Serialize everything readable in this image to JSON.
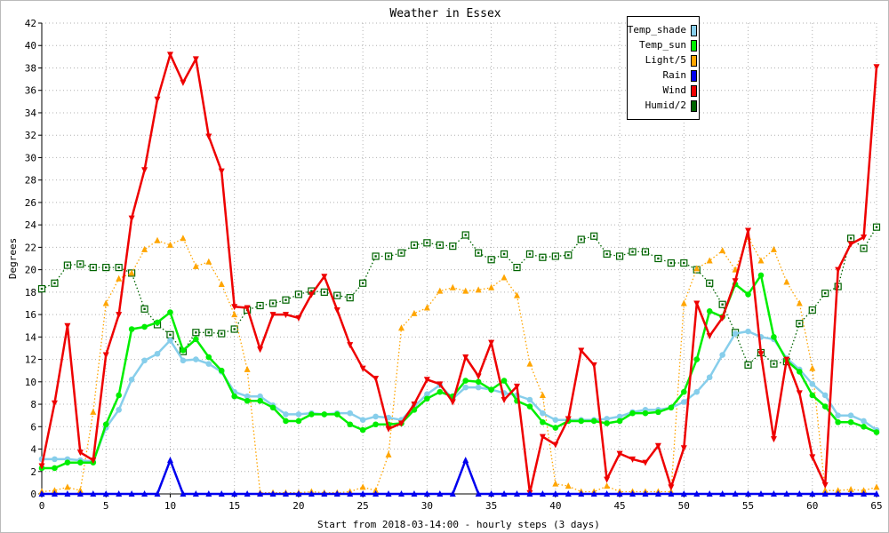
{
  "chart_data": {
    "type": "line",
    "title": "Weather in Essex",
    "xlabel": "Start from 2018-03-14:00 - hourly steps (3 days)",
    "ylabel": "Degrees",
    "xlim": [
      0,
      65
    ],
    "ylim": [
      0,
      42
    ],
    "xticks": [
      0,
      5,
      10,
      15,
      20,
      25,
      30,
      35,
      40,
      45,
      50,
      55,
      60,
      65
    ],
    "yticks": [
      0,
      2,
      4,
      6,
      8,
      10,
      12,
      14,
      16,
      18,
      20,
      22,
      24,
      26,
      28,
      30,
      32,
      34,
      36,
      38,
      40,
      42
    ],
    "grid": true,
    "legend_position": "top-right",
    "series": [
      {
        "name": "Temp_shade",
        "color": "#87ceeb",
        "marker": "circle",
        "style": "solid",
        "values": [
          3.1,
          3.1,
          3.1,
          3.0,
          2.9,
          5.9,
          7.5,
          10.2,
          11.9,
          12.5,
          13.7,
          11.9,
          12.0,
          11.6,
          10.9,
          9.1,
          8.7,
          8.7,
          7.9,
          7.1,
          7.1,
          7.2,
          7.1,
          7.2,
          7.2,
          6.6,
          6.9,
          6.8,
          6.6,
          7.8,
          8.9,
          9.7,
          8.5,
          9.5,
          9.5,
          9.3,
          9.0,
          8.8,
          8.4,
          7.2,
          6.6,
          6.6,
          6.6,
          6.6,
          6.7,
          6.9,
          7.3,
          7.5,
          7.5,
          7.7,
          8.2,
          9.1,
          10.4,
          12.4,
          14.3,
          14.5,
          14.0,
          13.8,
          12.1,
          11.1,
          9.8,
          8.8,
          7.0,
          7.0,
          6.5,
          5.7
        ]
      },
      {
        "name": "Temp_sun",
        "color": "#00ee00",
        "marker": "circle",
        "style": "solid",
        "values": [
          2.3,
          2.3,
          2.8,
          2.8,
          2.8,
          6.2,
          8.8,
          14.7,
          14.9,
          15.3,
          16.2,
          12.8,
          13.8,
          12.2,
          11.0,
          8.7,
          8.3,
          8.3,
          7.7,
          6.5,
          6.5,
          7.1,
          7.1,
          7.1,
          6.2,
          5.7,
          6.2,
          6.2,
          6.3,
          7.5,
          8.5,
          9.1,
          8.7,
          10.1,
          10.0,
          9.3,
          10.1,
          8.3,
          7.8,
          6.4,
          5.9,
          6.5,
          6.5,
          6.5,
          6.3,
          6.5,
          7.2,
          7.2,
          7.3,
          7.7,
          9.1,
          12.0,
          16.3,
          15.8,
          18.7,
          17.8,
          19.5,
          14.0,
          11.9,
          10.9,
          8.8,
          7.8,
          6.4,
          6.4,
          6.0,
          5.5
        ]
      },
      {
        "name": "Light/5",
        "color": "#ffa500",
        "marker": "triangle-up",
        "style": "dotted",
        "values": [
          0.2,
          0.3,
          0.6,
          0.3,
          7.3,
          17.0,
          19.2,
          19.7,
          21.8,
          22.6,
          22.2,
          22.8,
          20.3,
          20.7,
          18.7,
          16.0,
          11.1,
          0.1,
          0.1,
          0.1,
          0.1,
          0.2,
          0.1,
          0.1,
          0.2,
          0.6,
          0.3,
          3.5,
          14.8,
          16.1,
          16.6,
          18.1,
          18.4,
          18.1,
          18.2,
          18.4,
          19.3,
          17.7,
          11.6,
          8.8,
          0.9,
          0.7,
          0.2,
          0.2,
          0.7,
          0.2,
          0.2,
          0.2,
          0.2,
          0.2,
          17.0,
          20.1,
          20.8,
          21.7,
          20.0,
          22.9,
          20.8,
          21.8,
          18.9,
          17.0,
          11.2,
          0.3,
          0.3,
          0.4,
          0.3,
          0.6
        ]
      },
      {
        "name": "Rain",
        "color": "#0000ee",
        "marker": "triangle-up",
        "style": "solid",
        "values": [
          0,
          0,
          0,
          0,
          0,
          0,
          0,
          0,
          0,
          0,
          3.0,
          0,
          0,
          0,
          0,
          0,
          0,
          0,
          0,
          0,
          0,
          0,
          0,
          0,
          0,
          0,
          0,
          0,
          0,
          0,
          0,
          0,
          0,
          3.0,
          0,
          0,
          0,
          0,
          0,
          0,
          0,
          0,
          0,
          0,
          0,
          0,
          0,
          0,
          0,
          0,
          0,
          0,
          0,
          0,
          0,
          0,
          0,
          0,
          0,
          0,
          0,
          0,
          0,
          0,
          0,
          0
        ]
      },
      {
        "name": "Wind",
        "color": "#ee0000",
        "marker": "triangle-down",
        "style": "solid",
        "values": [
          2.5,
          8.1,
          15.0,
          3.7,
          3.0,
          12.4,
          16.0,
          24.6,
          28.9,
          35.2,
          39.2,
          36.7,
          38.8,
          31.9,
          28.8,
          16.7,
          16.6,
          12.9,
          16.0,
          16.0,
          15.7,
          17.8,
          19.4,
          16.4,
          13.3,
          11.2,
          10.3,
          5.8,
          6.3,
          8.0,
          10.2,
          9.8,
          8.2,
          12.2,
          10.5,
          13.5,
          8.4,
          9.6,
          0.1,
          5.1,
          4.4,
          6.7,
          12.8,
          11.5,
          1.3,
          3.6,
          3.1,
          2.8,
          4.3,
          0.6,
          4.1,
          17.0,
          14.1,
          15.7,
          19.0,
          23.5,
          12.5,
          4.9,
          12.0,
          9.0,
          3.3,
          0.8,
          20.0,
          22.3,
          22.9,
          38.1
        ]
      },
      {
        "name": "Humid/2",
        "color": "#006400",
        "marker": "square",
        "style": "dotted",
        "values": [
          18.3,
          18.8,
          20.4,
          20.5,
          20.2,
          20.2,
          20.2,
          19.7,
          16.5,
          15.1,
          14.2,
          12.7,
          14.4,
          14.4,
          14.3,
          14.7,
          16.4,
          16.8,
          17.0,
          17.3,
          17.8,
          18.1,
          18.0,
          17.7,
          17.5,
          18.8,
          21.2,
          21.2,
          21.5,
          22.2,
          22.4,
          22.2,
          22.1,
          23.1,
          21.5,
          20.9,
          21.4,
          20.2,
          21.4,
          21.1,
          21.2,
          21.3,
          22.7,
          23.0,
          21.4,
          21.2,
          21.6,
          21.6,
          21.0,
          20.6,
          20.6,
          20.0,
          18.8,
          16.9,
          14.4,
          11.5,
          12.6,
          11.6,
          11.8,
          15.2,
          16.4,
          17.9,
          18.5,
          22.8,
          21.9,
          23.8
        ]
      }
    ]
  }
}
